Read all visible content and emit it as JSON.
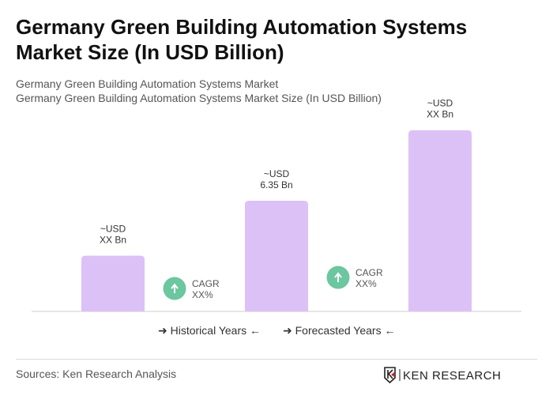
{
  "title": "Germany Green Building Automation Systems Market Size (In USD Billion)",
  "subtitle1": "Germany Green Building Automation Systems Market",
  "subtitle2": "Germany Green Building Automation Systems Market Size (In USD Billion)",
  "chart_data": {
    "type": "bar",
    "categories": [
      "",
      "",
      ""
    ],
    "values": [
      3.2,
      6.35,
      10.4
    ],
    "data_labels": [
      [
        "~USD",
        "XX Bn"
      ],
      [
        "~USD",
        "6.35 Bn"
      ],
      [
        "~USD",
        "XX Bn"
      ]
    ],
    "bar_color": "#dcc1f7",
    "cagr": [
      {
        "label": "CAGR",
        "value": "XX%"
      },
      {
        "label": "CAGR",
        "value": "XX%"
      }
    ],
    "cagr_color": "#6cc6a0",
    "grid": false
  },
  "legend": {
    "historical": "Historical Years",
    "forecasted": "Forecasted Years"
  },
  "source": "Sources: Ken Research Analysis",
  "logo_text": "KEN RESEARCH"
}
